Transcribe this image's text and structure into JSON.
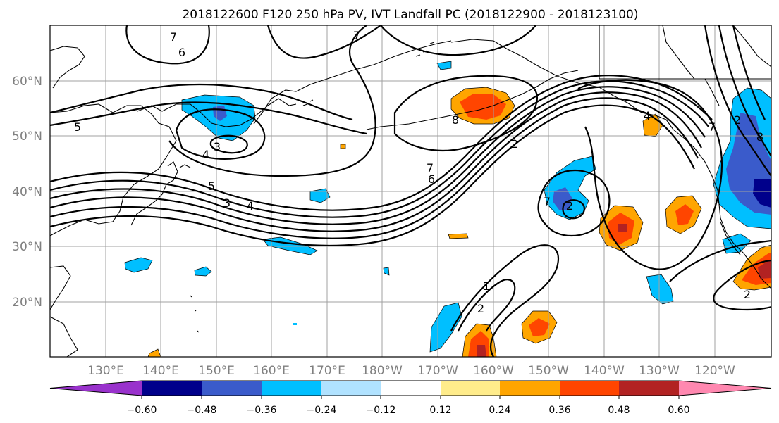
{
  "title": "2018122600 F120 250 hPa PV, IVT Landfall PC (2018122900 - 2018123100)",
  "lat_labels": [
    "60°N",
    "50°N",
    "40°N",
    "30°N",
    "20°N"
  ],
  "lon_labels": [
    "130°E",
    "140°E",
    "150°E",
    "160°E",
    "170°E",
    "180°W",
    "170°W",
    "160°W",
    "150°W",
    "140°W",
    "130°W",
    "120°W"
  ],
  "colorbar": {
    "colors": [
      "#9932cc",
      "#00008b",
      "#3a5bcb",
      "#00bfff",
      "#b0e2ff",
      "#ffffff",
      "#ffec8b",
      "#ffa500",
      "#ff4500",
      "#b22222",
      "#ff88b0"
    ],
    "tick_labels": [
      "−0.60",
      "−0.48",
      "−0.36",
      "−0.24",
      "−0.12",
      "0.12",
      "0.24",
      "0.36",
      "0.48",
      "0.60"
    ]
  },
  "contour_labels": [
    "7",
    "6",
    "5",
    "4",
    "3",
    "7",
    "5",
    "4",
    "3",
    "7",
    "6",
    "2",
    "8",
    "2",
    "7",
    "4",
    "7",
    "8",
    "2",
    "1",
    "2",
    "2"
  ]
}
